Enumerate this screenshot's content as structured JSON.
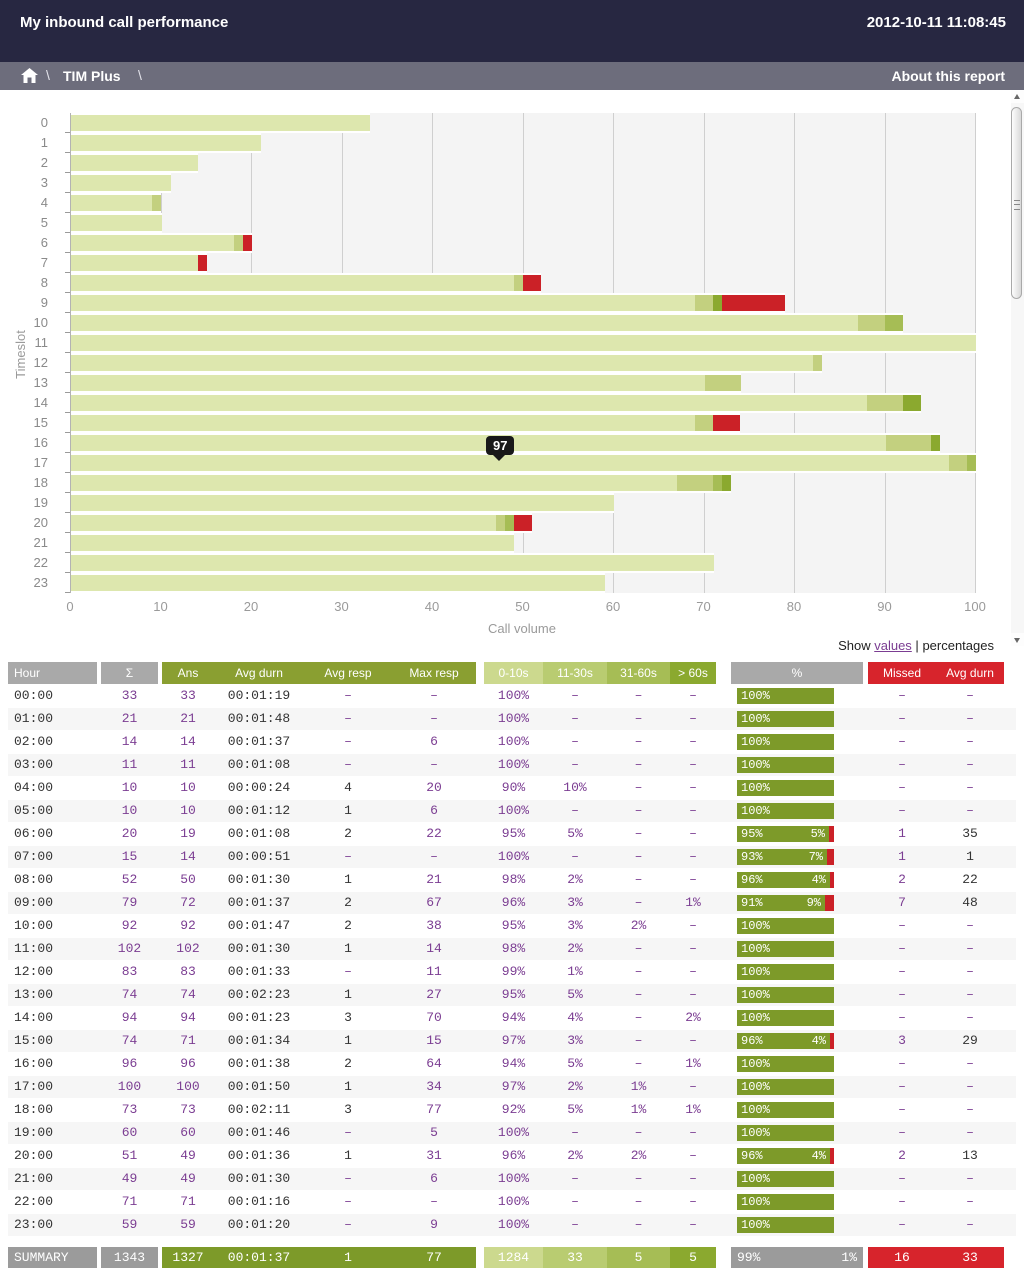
{
  "header": {
    "title": "My inbound call performance",
    "timestamp": "2012-10-11 11:08:45"
  },
  "breadcrumb": {
    "separator": "\\",
    "app": "TIM Plus",
    "about": "About this report"
  },
  "toggle": {
    "prefix": "Show",
    "values_link": "values",
    "separator": "|",
    "current": "percentages"
  },
  "chart_data": {
    "type": "bar",
    "orientation": "horizontal-stacked",
    "xlabel": "Call volume",
    "ylabel": "Timeslot",
    "xlim": [
      0,
      100
    ],
    "xticks": [
      0,
      10,
      20,
      30,
      40,
      50,
      60,
      70,
      80,
      90,
      100
    ],
    "grid": true,
    "categories": [
      "0",
      "1",
      "2",
      "3",
      "4",
      "5",
      "6",
      "7",
      "8",
      "9",
      "10",
      "11",
      "12",
      "13",
      "14",
      "15",
      "16",
      "17",
      "18",
      "19",
      "20",
      "21",
      "22",
      "23"
    ],
    "series": [
      {
        "name": "answered-0-10s",
        "color": "#dde7ae",
        "values": [
          33,
          21,
          14,
          11,
          9,
          10,
          18,
          14,
          49,
          69,
          87,
          100,
          82,
          70,
          88,
          69,
          90,
          97,
          67,
          60,
          47,
          49,
          71,
          59
        ]
      },
      {
        "name": "answered-11-30s",
        "color": "#c3d07f",
        "values": [
          0,
          0,
          0,
          0,
          1,
          0,
          1,
          0,
          1,
          2,
          3,
          2,
          1,
          4,
          4,
          2,
          5,
          2,
          4,
          0,
          1,
          0,
          0,
          0
        ]
      },
      {
        "name": "answered-31-60s",
        "color": "#a6bd55",
        "values": [
          0,
          0,
          0,
          0,
          0,
          0,
          0,
          0,
          0,
          0,
          2,
          0,
          0,
          0,
          0,
          0,
          0,
          1,
          1,
          0,
          1,
          0,
          0,
          0
        ]
      },
      {
        "name": "answered-60s-plus",
        "color": "#8ba92f",
        "values": [
          0,
          0,
          0,
          0,
          0,
          0,
          0,
          0,
          0,
          1,
          0,
          0,
          0,
          0,
          2,
          0,
          1,
          0,
          1,
          0,
          0,
          0,
          0,
          0
        ]
      },
      {
        "name": "missed",
        "color": "#cb2127",
        "values": [
          0,
          0,
          0,
          0,
          0,
          0,
          1,
          1,
          2,
          7,
          0,
          0,
          0,
          0,
          0,
          3,
          0,
          0,
          0,
          0,
          2,
          0,
          0,
          0
        ]
      }
    ],
    "tooltip": {
      "text": "97"
    }
  },
  "table": {
    "headers": {
      "hour": "Hour",
      "sigma": "Σ",
      "ans": "Ans",
      "avg_durn": "Avg durn",
      "avg_resp": "Avg resp",
      "max_resp": "Max resp",
      "b0": "0-10s",
      "b11": "11-30s",
      "b31": "31-60s",
      "b60": "> 60s",
      "pct": "%",
      "missed": "Missed",
      "missed_avg": "Avg durn"
    },
    "rows": [
      [
        "00:00",
        "33",
        "33",
        "00:01:19",
        "–",
        "–",
        "100%",
        "–",
        "–",
        "–",
        "100%",
        null,
        "–",
        "–"
      ],
      [
        "01:00",
        "21",
        "21",
        "00:01:48",
        "–",
        "–",
        "100%",
        "–",
        "–",
        "–",
        "100%",
        null,
        "–",
        "–"
      ],
      [
        "02:00",
        "14",
        "14",
        "00:01:37",
        "–",
        "6",
        "100%",
        "–",
        "–",
        "–",
        "100%",
        null,
        "–",
        "–"
      ],
      [
        "03:00",
        "11",
        "11",
        "00:01:08",
        "–",
        "–",
        "100%",
        "–",
        "–",
        "–",
        "100%",
        null,
        "–",
        "–"
      ],
      [
        "04:00",
        "10",
        "10",
        "00:00:24",
        "4",
        "20",
        "90%",
        "10%",
        "–",
        "–",
        "100%",
        null,
        "–",
        "–"
      ],
      [
        "05:00",
        "10",
        "10",
        "00:01:12",
        "1",
        "6",
        "100%",
        "–",
        "–",
        "–",
        "100%",
        null,
        "–",
        "–"
      ],
      [
        "06:00",
        "20",
        "19",
        "00:01:08",
        "2",
        "22",
        "95%",
        "5%",
        "–",
        "–",
        "95%",
        "5%",
        "1",
        "35"
      ],
      [
        "07:00",
        "15",
        "14",
        "00:00:51",
        "–",
        "–",
        "100%",
        "–",
        "–",
        "–",
        "93%",
        "7%",
        "1",
        "1"
      ],
      [
        "08:00",
        "52",
        "50",
        "00:01:30",
        "1",
        "21",
        "98%",
        "2%",
        "–",
        "–",
        "96%",
        "4%",
        "2",
        "22"
      ],
      [
        "09:00",
        "79",
        "72",
        "00:01:37",
        "2",
        "67",
        "96%",
        "3%",
        "–",
        "1%",
        "91%",
        "9%",
        "7",
        "48"
      ],
      [
        "10:00",
        "92",
        "92",
        "00:01:47",
        "2",
        "38",
        "95%",
        "3%",
        "2%",
        "–",
        "100%",
        null,
        "–",
        "–"
      ],
      [
        "11:00",
        "102",
        "102",
        "00:01:30",
        "1",
        "14",
        "98%",
        "2%",
        "–",
        "–",
        "100%",
        null,
        "–",
        "–"
      ],
      [
        "12:00",
        "83",
        "83",
        "00:01:33",
        "–",
        "11",
        "99%",
        "1%",
        "–",
        "–",
        "100%",
        null,
        "–",
        "–"
      ],
      [
        "13:00",
        "74",
        "74",
        "00:02:23",
        "1",
        "27",
        "95%",
        "5%",
        "–",
        "–",
        "100%",
        null,
        "–",
        "–"
      ],
      [
        "14:00",
        "94",
        "94",
        "00:01:23",
        "3",
        "70",
        "94%",
        "4%",
        "–",
        "2%",
        "100%",
        null,
        "–",
        "–"
      ],
      [
        "15:00",
        "74",
        "71",
        "00:01:34",
        "1",
        "15",
        "97%",
        "3%",
        "–",
        "–",
        "96%",
        "4%",
        "3",
        "29"
      ],
      [
        "16:00",
        "96",
        "96",
        "00:01:38",
        "2",
        "64",
        "94%",
        "5%",
        "–",
        "1%",
        "100%",
        null,
        "–",
        "–"
      ],
      [
        "17:00",
        "100",
        "100",
        "00:01:50",
        "1",
        "34",
        "97%",
        "2%",
        "1%",
        "–",
        "100%",
        null,
        "–",
        "–"
      ],
      [
        "18:00",
        "73",
        "73",
        "00:02:11",
        "3",
        "77",
        "92%",
        "5%",
        "1%",
        "1%",
        "100%",
        null,
        "–",
        "–"
      ],
      [
        "19:00",
        "60",
        "60",
        "00:01:46",
        "–",
        "5",
        "100%",
        "–",
        "–",
        "–",
        "100%",
        null,
        "–",
        "–"
      ],
      [
        "20:00",
        "51",
        "49",
        "00:01:36",
        "1",
        "31",
        "96%",
        "2%",
        "2%",
        "–",
        "96%",
        "4%",
        "2",
        "13"
      ],
      [
        "21:00",
        "49",
        "49",
        "00:01:30",
        "–",
        "6",
        "100%",
        "–",
        "–",
        "–",
        "100%",
        null,
        "–",
        "–"
      ],
      [
        "22:00",
        "71",
        "71",
        "00:01:16",
        "–",
        "–",
        "100%",
        "–",
        "–",
        "–",
        "100%",
        null,
        "–",
        "–"
      ],
      [
        "23:00",
        "59",
        "59",
        "00:01:20",
        "–",
        "9",
        "100%",
        "–",
        "–",
        "–",
        "100%",
        null,
        "–",
        "–"
      ]
    ],
    "summary": {
      "label": "SUMMARY",
      "sum": "1343",
      "ans": "1327",
      "avg_durn": "00:01:37",
      "avg_resp": "1",
      "max_resp": "77",
      "c0": "1284",
      "c11": "33",
      "c31": "5",
      "c60": "5",
      "pct_ans": "99%",
      "pct_missed": "1%",
      "missed": "16",
      "missed_avg": "33"
    }
  },
  "colors": {
    "titlebar": "#272741",
    "breadcrumb": "#6d6d7c",
    "accent_olive": "#7d9a29",
    "accent_red": "#d7242c",
    "link_purple": "#7b3d92"
  }
}
